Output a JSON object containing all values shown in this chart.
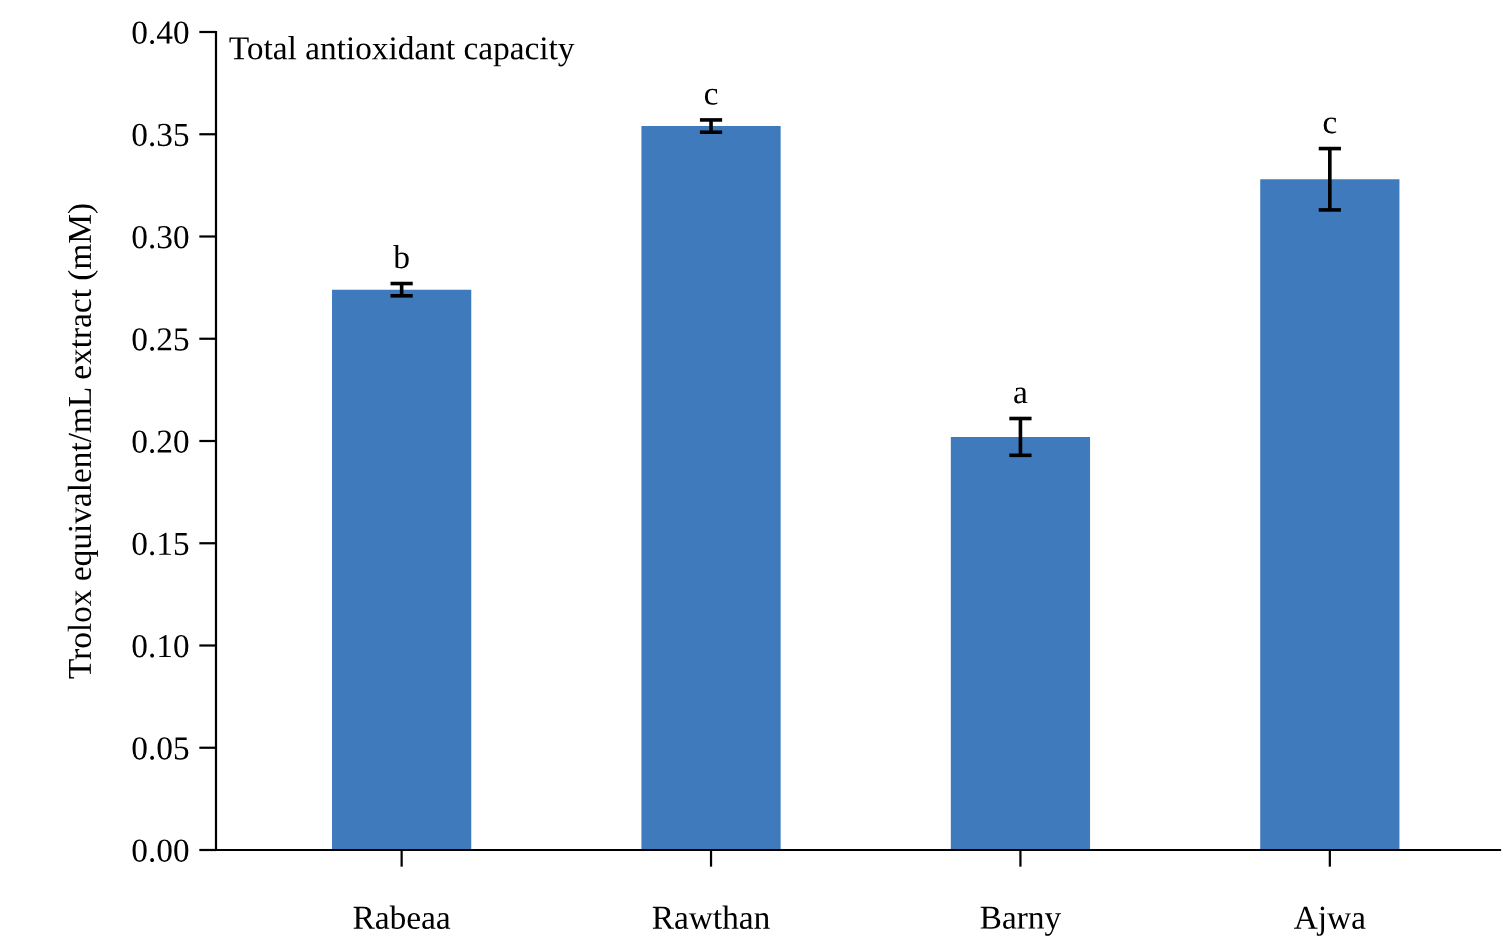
{
  "chart_data": {
    "type": "bar",
    "title": "Total antioxidant capacity",
    "ylabel": "Trolox equivalent/mL extract (mM)",
    "categories": [
      "Rabeaa",
      "Rawthan",
      "Barny",
      "Ajwa"
    ],
    "values": [
      0.274,
      0.354,
      0.202,
      0.328
    ],
    "errors": [
      0.003,
      0.003,
      0.009,
      0.015
    ],
    "color": "#3f7abd",
    "ylim": [
      0,
      0.4
    ],
    "yticks": [
      {
        "value": 0,
        "label": "0.00"
      },
      {
        "value": 0.05,
        "label": "0.05"
      },
      {
        "value": 0.1,
        "label": "0.10"
      },
      {
        "value": 0.15,
        "label": "0.15"
      },
      {
        "value": 0.2,
        "label": "0.20"
      },
      {
        "value": 0.25,
        "label": "0.25"
      },
      {
        "value": 0.3,
        "label": "0.30"
      },
      {
        "value": 0.35,
        "label": "0.35"
      },
      {
        "value": 0.4,
        "label": "0.40"
      }
    ],
    "grid": false,
    "legend": false,
    "annotations": [
      {
        "text": "b",
        "x": "Rabeaa",
        "y": 0.277
      },
      {
        "text": "c",
        "x": "Rawthan",
        "y": 0.357
      },
      {
        "text": "a",
        "x": "Barny",
        "y": 0.211
      },
      {
        "text": "c",
        "x": "Ajwa",
        "y": 0.343
      }
    ]
  }
}
